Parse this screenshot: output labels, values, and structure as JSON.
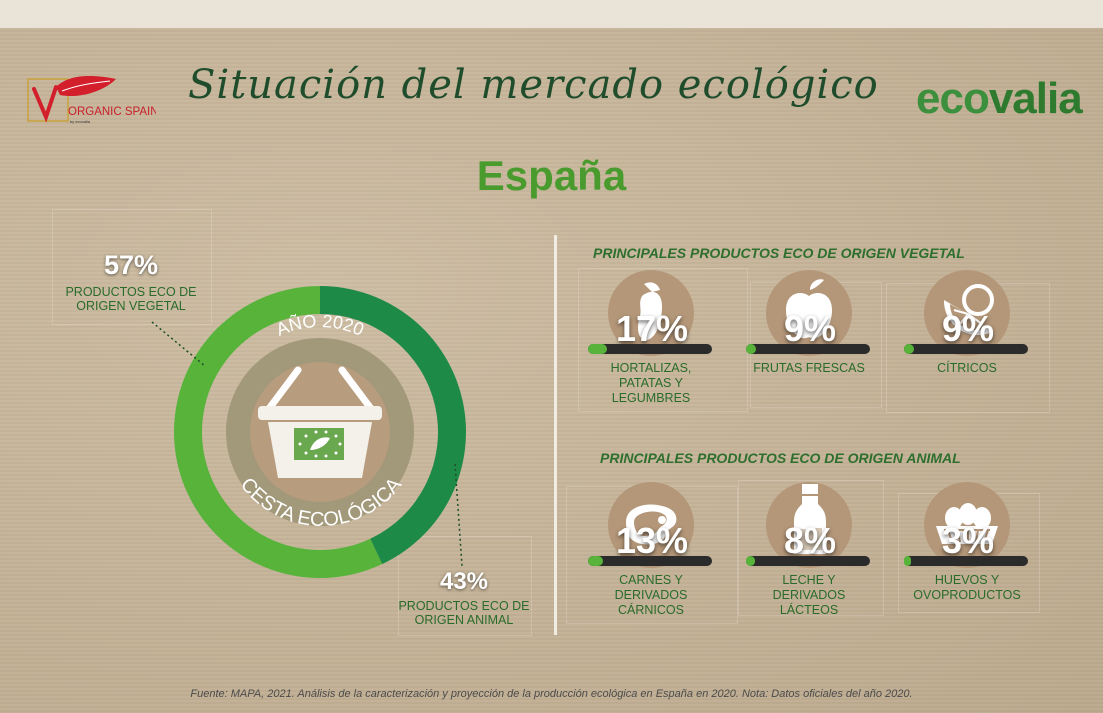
{
  "header": {
    "logo_left_text": "ORGANIC SPAIN",
    "logo_left_sub": "by ecovalia",
    "title": "Situación del mercado ecológico",
    "brand_eco": "eco",
    "brand_valia": "valia",
    "subtitle": "España"
  },
  "colors": {
    "vegetal": "#57b33a",
    "animal": "#1e8a47",
    "brand_green": "#3c8f3c",
    "bar_track": "#2b2b2b"
  },
  "chart_data": [
    {
      "type": "pie",
      "categories": [
        "PRODUCTOS ECO DE ORIGEN VEGETAL",
        "PRODUCTOS ECO DE ORIGEN ANIMAL"
      ],
      "values": [
        57,
        43
      ],
      "labels": [
        "57%",
        "43%"
      ],
      "center_top": "AÑO 2020",
      "center_bottom": "CESTA ECOLÓGICA"
    },
    {
      "type": "bar",
      "title": "PRINCIPALES PRODUCTOS ECO DE ORIGEN VEGETAL",
      "items": [
        {
          "label": "HORTALIZAS, PATATAS Y LEGUMBRES",
          "lines": [
            "HORTALIZAS,",
            "PATATAS Y",
            "LEGUMBRES"
          ],
          "value": 17,
          "text": "17%",
          "icon": "eggplant-icon"
        },
        {
          "label": "FRUTAS FRESCAS",
          "lines": [
            "FRUTAS FRESCAS"
          ],
          "value": 9,
          "text": "9%",
          "icon": "apple-icon"
        },
        {
          "label": "CÍTRICOS",
          "lines": [
            "CÍTRICOS"
          ],
          "value": 9,
          "text": "9%",
          "icon": "citrus-icon"
        }
      ]
    },
    {
      "type": "bar",
      "title": "PRINCIPALES PRODUCTOS ECO DE ORIGEN ANIMAL",
      "items": [
        {
          "label": "CARNES Y DERIVADOS CÁRNICOS",
          "lines": [
            "CARNES Y",
            "DERIVADOS",
            "CÁRNICOS"
          ],
          "value": 13,
          "text": "13%",
          "icon": "meat-icon"
        },
        {
          "label": "LECHE Y DERIVADOS LÁCTEOS",
          "lines": [
            "LECHE Y",
            "DERIVADOS",
            "LÁCTEOS"
          ],
          "value": 8,
          "text": "8%",
          "icon": "milk-bottle-icon"
        },
        {
          "label": "HUEVOS Y OVOPRODUCTOS",
          "lines": [
            "HUEVOS Y",
            "OVOPRODUCTOS"
          ],
          "value": 3,
          "text": "3%",
          "icon": "eggs-icon"
        }
      ]
    }
  ],
  "footer": "Fuente: MAPA, 2021. Análisis de la caracterización y proyección de la producción ecológica en España en 2020. Nota: Datos oficiales del año 2020."
}
